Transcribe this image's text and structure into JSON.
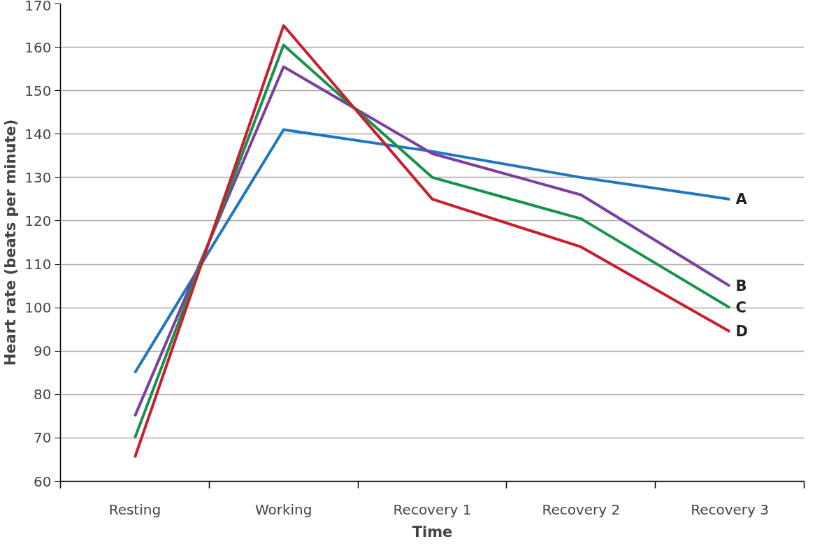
{
  "chart_data": {
    "type": "line",
    "xlabel": "Time",
    "ylabel": "Heart rate (beats per minute)",
    "categories": [
      "Resting",
      "Working",
      "Recovery 1",
      "Recovery 2",
      "Recovery 3"
    ],
    "series": [
      {
        "name": "A",
        "color": "#1f77c0",
        "values": [
          85,
          141,
          136,
          130,
          125
        ]
      },
      {
        "name": "B",
        "color": "#7b3f9e",
        "values": [
          75,
          155.5,
          135.5,
          126,
          105
        ]
      },
      {
        "name": "C",
        "color": "#16934a",
        "values": [
          70,
          160.5,
          130,
          120.5,
          100
        ]
      },
      {
        "name": "D",
        "color": "#c81e2e",
        "values": [
          65.5,
          165,
          125,
          114,
          94.5
        ]
      }
    ],
    "ylim": [
      60,
      170
    ],
    "yticks": [
      60,
      70,
      80,
      90,
      100,
      110,
      120,
      130,
      140,
      150,
      160,
      170
    ],
    "grid": "y",
    "marker": "none",
    "line_style": "solid"
  }
}
